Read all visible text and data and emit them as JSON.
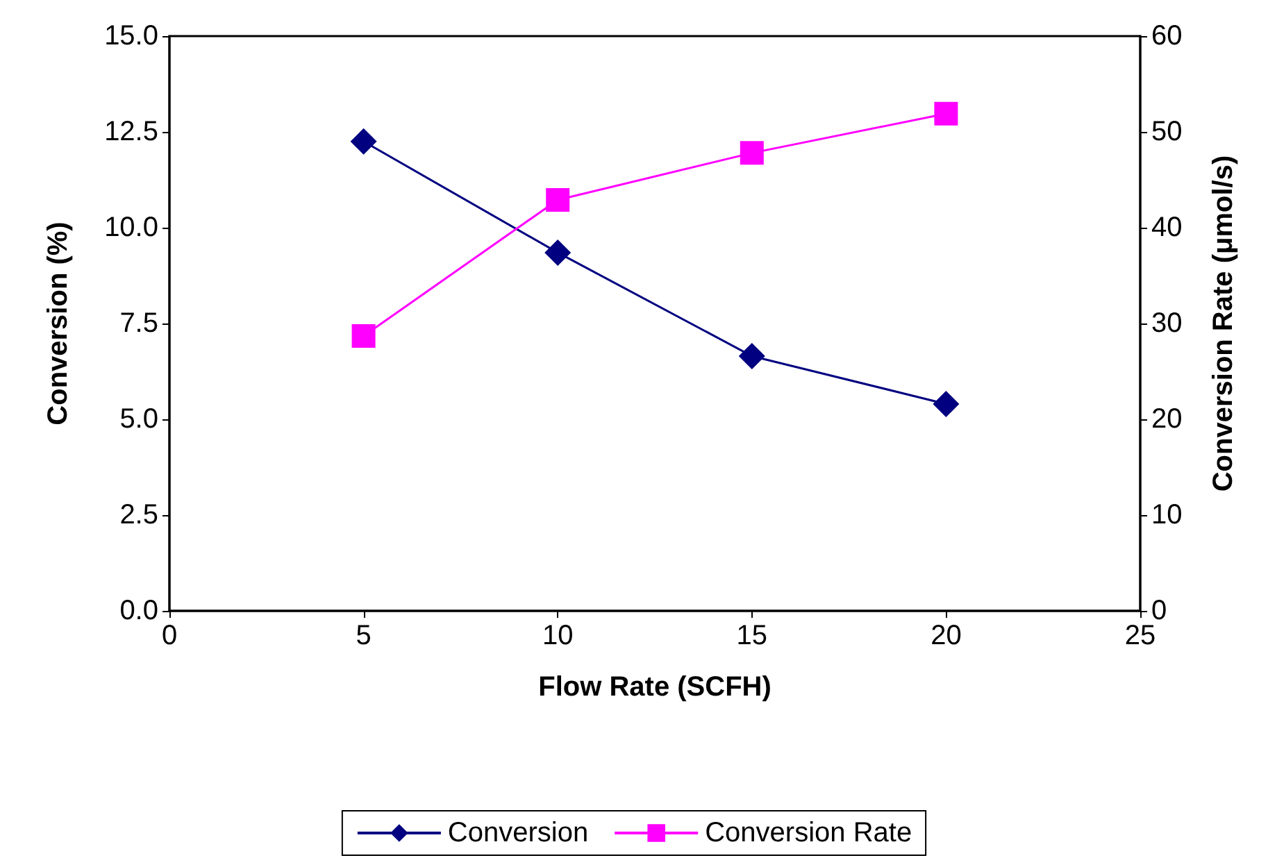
{
  "chart_data": {
    "type": "line",
    "xlabel": "Flow Rate (SCFH)",
    "ylabel": "Conversion (%)",
    "y2label": "Conversion Rate (μmol/s)",
    "x": [
      5,
      10,
      15,
      20
    ],
    "series": [
      {
        "name": "Conversion",
        "color": "#000080",
        "marker": "diamond",
        "values": [
          12.25,
          9.35,
          6.65,
          5.4
        ]
      },
      {
        "name": "Conversion Rate",
        "color": "#ff00ff",
        "marker": "square",
        "axis": "y2",
        "values": [
          28.7,
          42.9,
          47.8,
          51.9
        ]
      }
    ],
    "xlim": [
      0,
      25
    ],
    "xticks": [
      0,
      5,
      10,
      15,
      20,
      25
    ],
    "ylim": [
      0,
      15
    ],
    "yticks": [
      {
        "value": 0,
        "label": "0.0"
      },
      {
        "value": 2.5,
        "label": "2.5"
      },
      {
        "value": 5,
        "label": "5.0"
      },
      {
        "value": 7.5,
        "label": "7.5"
      },
      {
        "value": 10,
        "label": "10.0"
      },
      {
        "value": 12.5,
        "label": "12.5"
      },
      {
        "value": 15,
        "label": "15.0"
      }
    ],
    "y2lim": [
      0,
      60
    ],
    "y2ticks": [
      0,
      10,
      20,
      30,
      40,
      50,
      60
    ],
    "grid": false,
    "legend": "bottom",
    "line_style": "solid"
  }
}
